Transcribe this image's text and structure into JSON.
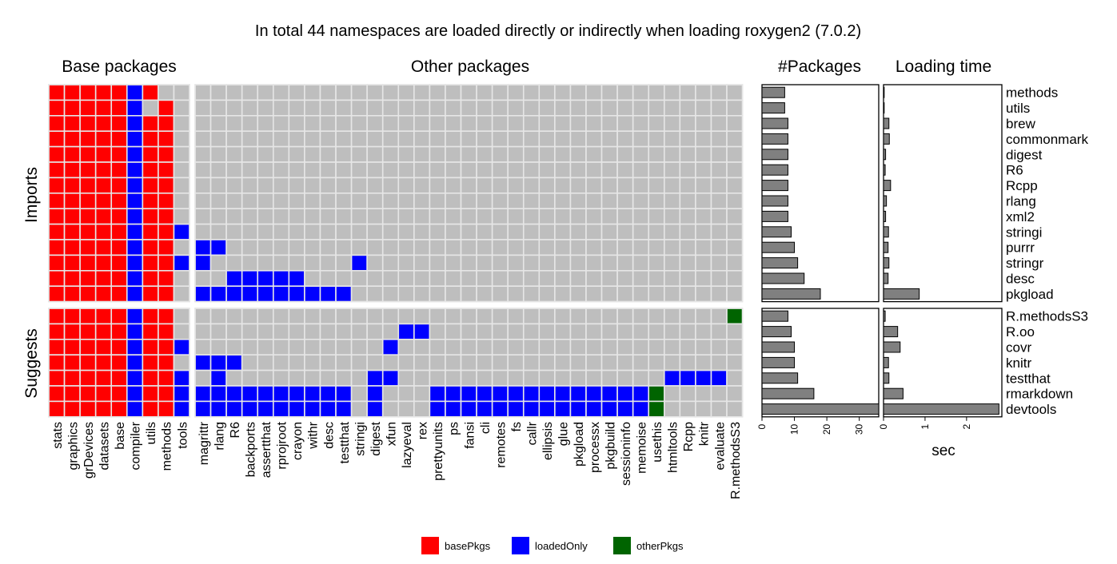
{
  "colors": {
    "basePkgs": "#ff0000",
    "loadedOnly": "#0000ff",
    "otherPkgs": "#006400",
    "empty": "#bebebe",
    "bar": "#808080"
  },
  "chart_data": [
    {
      "type": "heatmap",
      "title": "In total 44 namespaces are loaded directly or indirectly when loading roxygen2 (7.0.2)",
      "column_groups": [
        {
          "label": "Base packages",
          "columns": [
            "stats",
            "graphics",
            "grDevices",
            "datasets",
            "base",
            "compiler",
            "utils",
            "methods",
            "tools"
          ]
        },
        {
          "label": "Other packages",
          "columns": [
            "magrittr",
            "rlang",
            "R6",
            "backports",
            "assertthat",
            "rprojroot",
            "crayon",
            "withr",
            "desc",
            "testthat",
            "stringi",
            "digest",
            "xfun",
            "lazyeval",
            "rex",
            "prettyunits",
            "ps",
            "fansi",
            "cli",
            "remotes",
            "fs",
            "callr",
            "ellipsis",
            "glue",
            "pkgload",
            "processx",
            "pkgbuild",
            "sessioninfo",
            "memoise",
            "usethis",
            "htmltools",
            "Rcpp",
            "knitr",
            "evaluate",
            "R.methodsS3"
          ]
        }
      ],
      "row_groups": [
        {
          "label": "Imports",
          "rows": [
            "methods",
            "utils",
            "brew",
            "commonmark",
            "digest",
            "R6",
            "Rcpp",
            "rlang",
            "xml2",
            "stringi",
            "purrr",
            "stringr",
            "desc",
            "pkgload"
          ]
        },
        {
          "label": "Suggests",
          "rows": [
            "R.methodsS3",
            "R.oo",
            "covr",
            "knitr",
            "testthat",
            "rmarkdown",
            "devtools"
          ]
        }
      ],
      "legend": {
        "position": "bottom",
        "entries": [
          "basePkgs",
          "loadedOnly",
          "otherPkgs"
        ]
      },
      "cells": {
        "methods": {
          "basePkgs": [
            "stats",
            "graphics",
            "grDevices",
            "datasets",
            "base",
            "utils"
          ],
          "loadedOnly": [
            "compiler"
          ],
          "otherPkgs": []
        },
        "utils": {
          "basePkgs": [
            "stats",
            "graphics",
            "grDevices",
            "datasets",
            "base",
            "methods"
          ],
          "loadedOnly": [
            "compiler"
          ],
          "otherPkgs": []
        },
        "brew": {
          "basePkgs": [
            "stats",
            "graphics",
            "grDevices",
            "datasets",
            "base",
            "utils",
            "methods"
          ],
          "loadedOnly": [
            "compiler"
          ],
          "otherPkgs": []
        },
        "commonmark": {
          "basePkgs": [
            "stats",
            "graphics",
            "grDevices",
            "datasets",
            "base",
            "utils",
            "methods"
          ],
          "loadedOnly": [
            "compiler"
          ],
          "otherPkgs": []
        },
        "digest": {
          "basePkgs": [
            "stats",
            "graphics",
            "grDevices",
            "datasets",
            "base",
            "utils",
            "methods"
          ],
          "loadedOnly": [
            "compiler"
          ],
          "otherPkgs": []
        },
        "R6": {
          "basePkgs": [
            "stats",
            "graphics",
            "grDevices",
            "datasets",
            "base",
            "utils",
            "methods"
          ],
          "loadedOnly": [
            "compiler"
          ],
          "otherPkgs": []
        },
        "Rcpp": {
          "basePkgs": [
            "stats",
            "graphics",
            "grDevices",
            "datasets",
            "base",
            "utils",
            "methods"
          ],
          "loadedOnly": [
            "compiler"
          ],
          "otherPkgs": []
        },
        "rlang": {
          "basePkgs": [
            "stats",
            "graphics",
            "grDevices",
            "datasets",
            "base",
            "utils",
            "methods"
          ],
          "loadedOnly": [
            "compiler"
          ],
          "otherPkgs": []
        },
        "xml2": {
          "basePkgs": [
            "stats",
            "graphics",
            "grDevices",
            "datasets",
            "base",
            "utils",
            "methods"
          ],
          "loadedOnly": [
            "compiler"
          ],
          "otherPkgs": []
        },
        "stringi": {
          "basePkgs": [
            "stats",
            "graphics",
            "grDevices",
            "datasets",
            "base",
            "utils",
            "methods"
          ],
          "loadedOnly": [
            "compiler",
            "tools"
          ],
          "otherPkgs": []
        },
        "purrr": {
          "basePkgs": [
            "stats",
            "graphics",
            "grDevices",
            "datasets",
            "base",
            "utils",
            "methods"
          ],
          "loadedOnly": [
            "compiler",
            "magrittr",
            "rlang"
          ],
          "otherPkgs": []
        },
        "stringr": {
          "basePkgs": [
            "stats",
            "graphics",
            "grDevices",
            "datasets",
            "base",
            "utils",
            "methods"
          ],
          "loadedOnly": [
            "compiler",
            "tools",
            "magrittr",
            "stringi"
          ],
          "otherPkgs": []
        },
        "desc": {
          "basePkgs": [
            "stats",
            "graphics",
            "grDevices",
            "datasets",
            "base",
            "utils",
            "methods"
          ],
          "loadedOnly": [
            "compiler",
            "R6",
            "backports",
            "assertthat",
            "rprojroot",
            "crayon"
          ],
          "otherPkgs": []
        },
        "pkgload": {
          "basePkgs": [
            "stats",
            "graphics",
            "grDevices",
            "datasets",
            "base",
            "utils",
            "methods"
          ],
          "loadedOnly": [
            "compiler",
            "magrittr",
            "rlang",
            "R6",
            "backports",
            "assertthat",
            "rprojroot",
            "crayon",
            "withr",
            "desc",
            "testthat"
          ],
          "otherPkgs": []
        },
        "R.methodsS3": {
          "basePkgs": [
            "stats",
            "graphics",
            "grDevices",
            "datasets",
            "base",
            "utils",
            "methods"
          ],
          "loadedOnly": [
            "compiler"
          ],
          "otherPkgs": [
            "R.methodsS3"
          ]
        },
        "R.oo": {
          "basePkgs": [
            "stats",
            "graphics",
            "grDevices",
            "datasets",
            "base",
            "utils",
            "methods"
          ],
          "loadedOnly": [
            "compiler",
            "lazyeval",
            "rex"
          ],
          "otherPkgs": []
        },
        "covr": {
          "basePkgs": [
            "stats",
            "graphics",
            "grDevices",
            "datasets",
            "base",
            "utils",
            "methods"
          ],
          "loadedOnly": [
            "compiler",
            "tools",
            "xfun"
          ],
          "otherPkgs": []
        },
        "knitr": {
          "basePkgs": [
            "stats",
            "graphics",
            "grDevices",
            "datasets",
            "base",
            "utils",
            "methods"
          ],
          "loadedOnly": [
            "compiler",
            "magrittr",
            "rlang",
            "R6"
          ],
          "otherPkgs": []
        },
        "testthat": {
          "basePkgs": [
            "stats",
            "graphics",
            "grDevices",
            "datasets",
            "base",
            "utils",
            "methods"
          ],
          "loadedOnly": [
            "compiler",
            "tools",
            "rlang",
            "digest",
            "xfun",
            "htmltools",
            "Rcpp",
            "knitr",
            "evaluate"
          ],
          "otherPkgs": []
        },
        "rmarkdown": {
          "basePkgs": [
            "stats",
            "graphics",
            "grDevices",
            "datasets",
            "base",
            "utils",
            "methods"
          ],
          "loadedOnly": [
            "compiler",
            "tools",
            "magrittr",
            "rlang",
            "R6",
            "backports",
            "assertthat",
            "rprojroot",
            "crayon",
            "withr",
            "desc",
            "testthat",
            "digest",
            "prettyunits",
            "ps",
            "fansi",
            "cli",
            "remotes",
            "fs",
            "callr",
            "ellipsis",
            "glue",
            "pkgload",
            "processx",
            "pkgbuild",
            "sessioninfo",
            "memoise"
          ],
          "otherPkgs": [
            "usethis"
          ]
        },
        "devtools": {
          "basePkgs": [],
          "loadedOnly": [],
          "otherPkgs": []
        }
      }
    },
    {
      "type": "bar",
      "orientation": "horizontal",
      "title": "#Packages",
      "xlabel": "",
      "xlim": [
        0,
        36
      ],
      "xticks": [
        0,
        10,
        20,
        30
      ],
      "categories": [
        "methods",
        "utils",
        "brew",
        "commonmark",
        "digest",
        "R6",
        "Rcpp",
        "rlang",
        "xml2",
        "stringi",
        "purrr",
        "stringr",
        "desc",
        "pkgload",
        "R.methodsS3",
        "R.oo",
        "covr",
        "knitr",
        "testthat",
        "rmarkdown",
        "devtools"
      ],
      "values": [
        7,
        7,
        8,
        8,
        8,
        8,
        8,
        8,
        8,
        9,
        10,
        11,
        13,
        18,
        8,
        9,
        10,
        10,
        11,
        16,
        36
      ]
    },
    {
      "type": "bar",
      "orientation": "horizontal",
      "title": "Loading time",
      "xlabel": "sec",
      "xlim": [
        0,
        2.85
      ],
      "xticks": [
        0,
        1,
        2
      ],
      "categories": [
        "methods",
        "utils",
        "brew",
        "commonmark",
        "digest",
        "R6",
        "Rcpp",
        "rlang",
        "xml2",
        "stringi",
        "purrr",
        "stringr",
        "desc",
        "pkgload",
        "R.methodsS3",
        "R.oo",
        "covr",
        "knitr",
        "testthat",
        "rmarkdown",
        "devtools"
      ],
      "values": [
        0.01,
        0.01,
        0.13,
        0.14,
        0.05,
        0.04,
        0.17,
        0.07,
        0.05,
        0.12,
        0.11,
        0.13,
        0.11,
        0.86,
        0.04,
        0.34,
        0.4,
        0.12,
        0.13,
        0.47,
        2.78
      ]
    }
  ]
}
